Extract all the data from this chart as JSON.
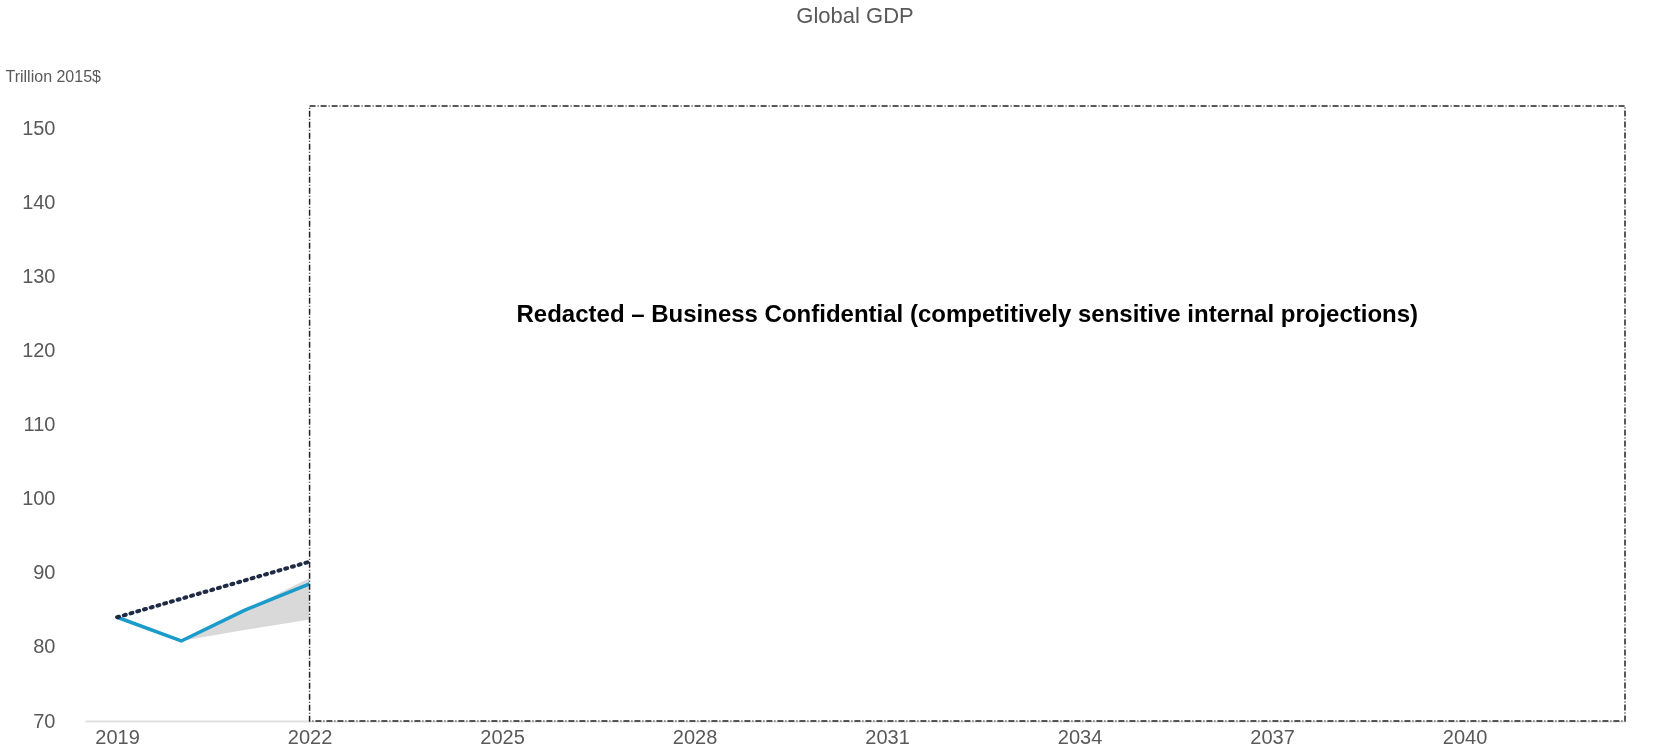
{
  "chart_data": {
    "type": "line",
    "title": "Global GDP",
    "ylabel": "Trillion 2015$",
    "x": [
      2019,
      2020,
      2021,
      2022
    ],
    "series": [
      {
        "color": "#1a9bc9",
        "values": [
          84,
          80.8,
          85,
          88.5
        ],
        "lower": [
          84,
          80.8,
          82.3,
          83.7
        ],
        "upper": [
          84,
          80.8,
          85,
          89.3
        ],
        "line_style": "solid"
      },
      {
        "color": "#1f2a44",
        "x": [
          2019,
          2022
        ],
        "values": [
          84,
          91.5
        ],
        "line_style": "dotted"
      }
    ],
    "bands": [
      {
        "axis": "x",
        "from": 2022,
        "to": 2042.5,
        "label": "Redacted – Business Confidential (competitively sensitive internal projections)",
        "color": "#ffffff"
      }
    ],
    "xlim": [
      2018.5,
      2042.5
    ],
    "xticks": [
      2019,
      2022,
      2025,
      2028,
      2031,
      2034,
      2037,
      2040
    ],
    "ylim": [
      70,
      153
    ],
    "yticks": [
      70,
      80,
      90,
      100,
      110,
      120,
      130,
      140,
      150
    ],
    "grid": false,
    "legend": false,
    "marker": "none"
  }
}
